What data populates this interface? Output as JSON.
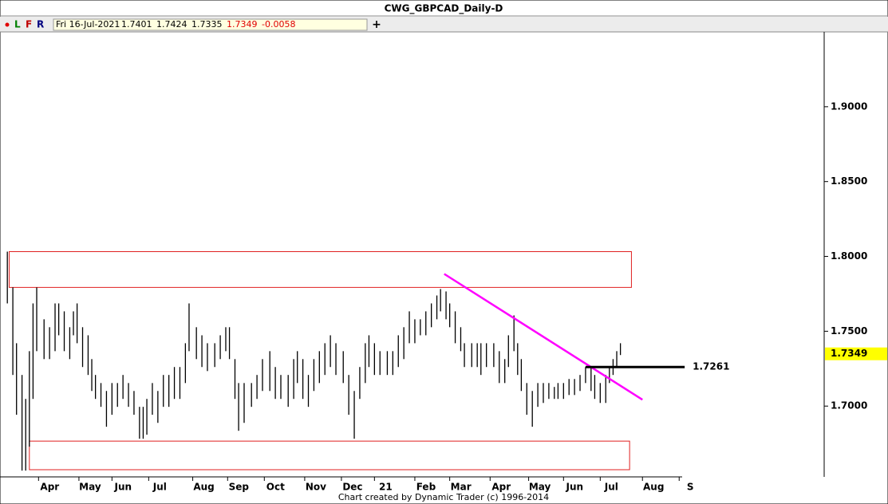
{
  "header": {
    "indicators": [
      "L",
      "F",
      "R"
    ],
    "date": "Fri 16-Jul-2021",
    "open": "1.7401",
    "high": "1.7424",
    "low": "1.7335",
    "close": "1.7349",
    "change": "-0.0058"
  },
  "footer": "Chart created by Dynamic Trader  (c) 1996-2014",
  "chart_data": {
    "type": "ohlc",
    "title": "CWG_GBPCAD_Daily-D",
    "x": [
      0,
      3,
      5,
      8,
      10,
      12,
      14,
      16,
      20,
      23,
      26,
      28,
      31,
      34,
      36,
      38,
      41,
      44,
      46,
      48,
      51,
      54,
      57,
      60,
      63,
      66,
      69,
      72,
      74,
      76,
      79,
      82,
      85,
      88,
      91,
      94,
      97,
      99,
      103,
      106,
      109,
      113,
      116,
      119,
      121,
      124,
      126,
      129,
      133,
      136,
      139,
      143,
      146,
      149,
      153,
      156,
      158,
      161,
      164,
      167,
      170,
      173,
      176,
      179,
      183,
      186,
      189,
      192,
      195,
      197,
      200,
      203,
      207,
      210,
      213,
      216,
      219,
      222,
      225,
      228,
      231,
      234,
      236,
      239,
      241,
      244,
      247,
      249,
      253,
      256,
      258,
      261,
      265,
      268,
      271,
      273,
      276,
      278,
      280,
      283,
      286,
      289,
      292,
      295,
      298,
      300,
      303,
      306,
      309,
      312,
      315,
      318,
      320,
      323,
      326,
      328,
      330,
      332,
      334
    ],
    "high": [
      1.8032,
      1.7793,
      1.742,
      1.7208,
      1.7048,
      1.7367,
      1.7686,
      1.7793,
      1.758,
      1.7527,
      1.7686,
      1.7686,
      1.7633,
      1.7527,
      1.7633,
      1.7686,
      1.7527,
      1.7473,
      1.7314,
      1.7208,
      1.7154,
      1.7101,
      1.7154,
      1.7154,
      1.7208,
      1.7154,
      1.7101,
      1.6995,
      1.6995,
      1.7048,
      1.7154,
      1.7101,
      1.7208,
      1.7208,
      1.7261,
      1.7261,
      1.742,
      1.7686,
      1.7527,
      1.7473,
      1.742,
      1.742,
      1.7473,
      1.7527,
      1.7527,
      1.7314,
      1.7154,
      1.7154,
      1.7154,
      1.7208,
      1.7314,
      1.7367,
      1.7261,
      1.7208,
      1.7208,
      1.7314,
      1.7367,
      1.7314,
      1.7208,
      1.7314,
      1.7367,
      1.742,
      1.7473,
      1.742,
      1.7367,
      1.7208,
      1.7101,
      1.7261,
      1.742,
      1.7473,
      1.742,
      1.7367,
      1.7367,
      1.7367,
      1.7473,
      1.7527,
      1.7633,
      1.758,
      1.758,
      1.7633,
      1.7686,
      1.7739,
      1.7782,
      1.7766,
      1.7686,
      1.7633,
      1.7527,
      1.742,
      1.742,
      1.742,
      1.742,
      1.742,
      1.742,
      1.7367,
      1.7314,
      1.7473,
      1.7606,
      1.742,
      1.7314,
      1.7154,
      1.7101,
      1.7154,
      1.7154,
      1.7154,
      1.7128,
      1.7154,
      1.7154,
      1.7181,
      1.7181,
      1.7208,
      1.7261,
      1.7261,
      1.7208,
      1.7154,
      1.7208,
      1.7261,
      1.7314,
      1.7367,
      1.742
    ],
    "low": [
      1.7686,
      1.7208,
      1.6942,
      1.6569,
      1.6569,
      1.6729,
      1.7048,
      1.7367,
      1.7314,
      1.7314,
      1.7367,
      1.7473,
      1.7367,
      1.7314,
      1.7473,
      1.742,
      1.7261,
      1.7208,
      1.7101,
      1.7048,
      1.6995,
      1.6862,
      1.6942,
      1.6995,
      1.7048,
      1.6995,
      1.6942,
      1.6782,
      1.6782,
      1.6809,
      1.6942,
      1.6888,
      1.6995,
      1.6995,
      1.7048,
      1.7048,
      1.7154,
      1.7367,
      1.7314,
      1.7261,
      1.7234,
      1.7261,
      1.7314,
      1.7367,
      1.7314,
      1.7048,
      1.6835,
      1.6888,
      1.6995,
      1.7048,
      1.7101,
      1.7101,
      1.7048,
      1.7048,
      1.6995,
      1.7048,
      1.7154,
      1.7048,
      1.6995,
      1.7101,
      1.7154,
      1.7208,
      1.7261,
      1.7208,
      1.7154,
      1.6942,
      1.6782,
      1.7048,
      1.7154,
      1.7261,
      1.7208,
      1.7208,
      1.7208,
      1.7208,
      1.7261,
      1.7314,
      1.742,
      1.742,
      1.7473,
      1.7473,
      1.7527,
      1.758,
      1.7633,
      1.758,
      1.7527,
      1.742,
      1.7367,
      1.7261,
      1.7261,
      1.7261,
      1.7208,
      1.7261,
      1.7261,
      1.7154,
      1.7154,
      1.7261,
      1.7367,
      1.7208,
      1.7101,
      1.6942,
      1.6862,
      1.6995,
      1.7021,
      1.7048,
      1.7048,
      1.7048,
      1.7048,
      1.7074,
      1.7074,
      1.7101,
      1.7154,
      1.7101,
      1.7048,
      1.7021,
      1.7021,
      1.7154,
      1.7208,
      1.7261,
      1.7341
    ],
    "color": "#000000",
    "xlim": [
      -4,
      445
    ],
    "xticks": [
      {
        "value": 17,
        "label": "Apr"
      },
      {
        "value": 39,
        "label": "May"
      },
      {
        "value": 57,
        "label": "Jun"
      },
      {
        "value": 77,
        "label": "Jul"
      },
      {
        "value": 101,
        "label": "Aug"
      },
      {
        "value": 120,
        "label": "Sep"
      },
      {
        "value": 140,
        "label": "Oct"
      },
      {
        "value": 162,
        "label": "Nov"
      },
      {
        "value": 182,
        "label": "Dec"
      },
      {
        "value": 200,
        "label": "21"
      },
      {
        "value": 222,
        "label": "Feb"
      },
      {
        "value": 241,
        "label": "Mar"
      },
      {
        "value": 263,
        "label": "Apr"
      },
      {
        "value": 284,
        "label": "May"
      },
      {
        "value": 303,
        "label": "Jun"
      },
      {
        "value": 323,
        "label": "Jul"
      },
      {
        "value": 346,
        "label": "Aug"
      },
      {
        "value": 366,
        "label": "S"
      }
    ],
    "ylim": [
      1.6527,
      1.95
    ],
    "yticks": [
      {
        "value": 1.7,
        "label": "1.7000"
      },
      {
        "value": 1.75,
        "label": "1.7500"
      },
      {
        "value": 1.8,
        "label": "1.8000"
      },
      {
        "value": 1.85,
        "label": "1.8500"
      },
      {
        "value": 1.9,
        "label": "1.9000"
      }
    ],
    "zones": [
      {
        "x": [
          1,
          340
        ],
        "y": [
          1.8032,
          1.7793
        ]
      },
      {
        "x": [
          12,
          339
        ],
        "y": [
          1.6766,
          1.6575
        ]
      }
    ],
    "zone_color": "#e02020",
    "trendline": {
      "x": [
        238,
        346
      ],
      "y": [
        1.7883,
        1.7043
      ],
      "color": "#ff00ff"
    },
    "level": {
      "x": [
        315,
        369
      ],
      "value": 1.7261,
      "color": "#000000"
    },
    "last_price": 1.7349,
    "last_price_color": "#ffff00"
  }
}
